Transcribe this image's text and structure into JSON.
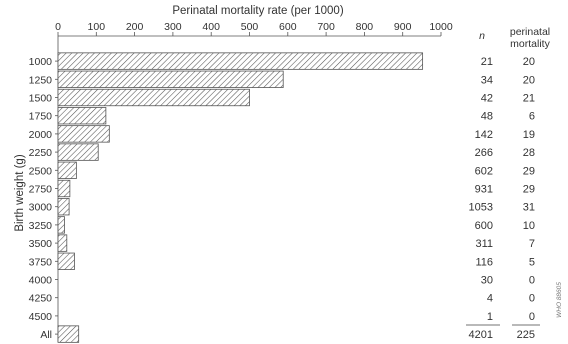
{
  "chart_data": {
    "type": "bar",
    "orientation": "horizontal",
    "title": "Perinatal mortality rate (per 1000)",
    "ylabel": "Birth weight (g)",
    "xlim": [
      0,
      1000
    ],
    "xticks": [
      "0",
      "100",
      "200",
      "300",
      "400",
      "500",
      "600",
      "700",
      "800",
      "900",
      "1000"
    ],
    "categories": [
      "1000",
      "1250",
      "1500",
      "1750",
      "2000",
      "2250",
      "2500",
      "2750",
      "3000",
      "3250",
      "3500",
      "3750",
      "4000",
      "4250",
      "4500",
      "All"
    ],
    "values": [
      952,
      588,
      500,
      125,
      134,
      105,
      48,
      31,
      29,
      17,
      23,
      43,
      0,
      0,
      0,
      54
    ],
    "fill_pattern": "diagonal hatch",
    "table": {
      "n_header": "n",
      "mortality_header_line1": "perinatal",
      "mortality_header_line2": "mortality",
      "n": [
        "21",
        "34",
        "42",
        "48",
        "142",
        "266",
        "602",
        "931",
        "1053",
        "600",
        "311",
        "116",
        "30",
        "4",
        "1",
        "4201"
      ],
      "mortality": [
        "20",
        "20",
        "21",
        "6",
        "19",
        "28",
        "29",
        "29",
        "31",
        "10",
        "7",
        "5",
        "0",
        "0",
        "0",
        "225"
      ]
    },
    "watermark": "WHO 88605"
  }
}
